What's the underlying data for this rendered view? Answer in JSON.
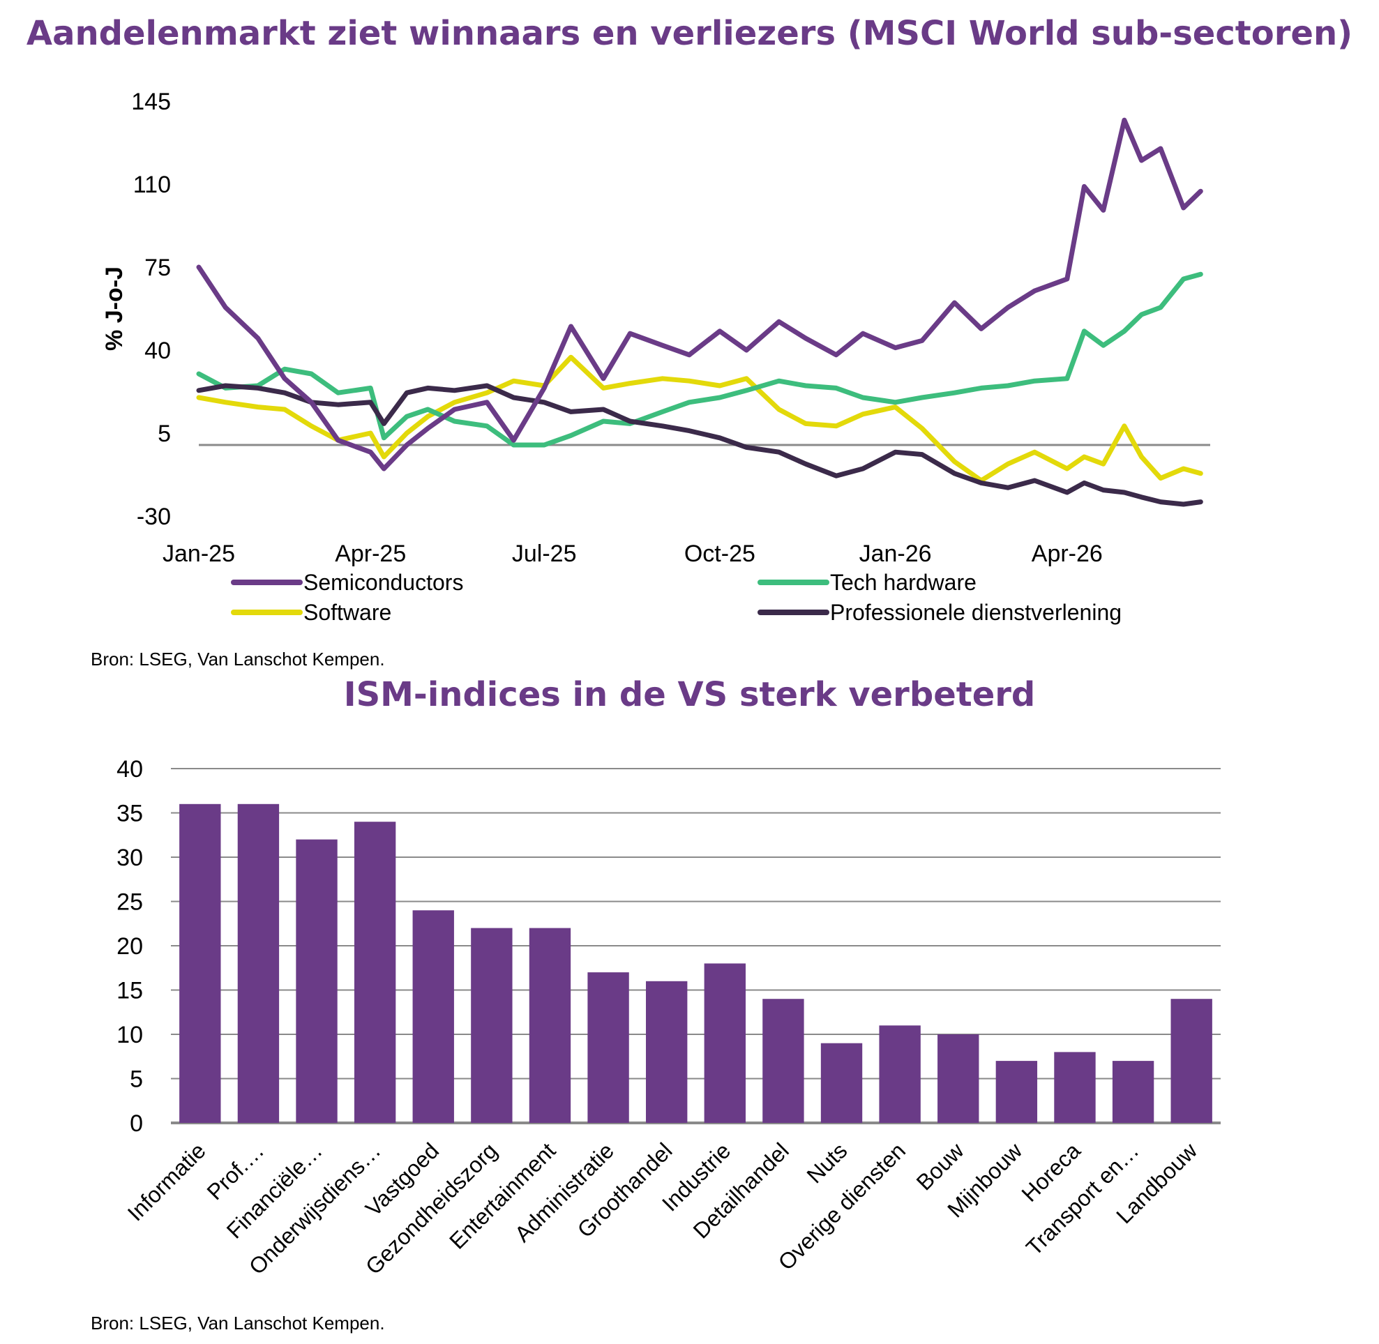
{
  "top_chart": {
    "title": "Aandelenmarkt ziet winnaars en verliezers (MSCI World sub-sectoren)",
    "source": "Bron: LSEG, Van Lanschot Kempen."
  },
  "bottom_chart": {
    "title": "ISM-indices in de VS sterk verbeterd",
    "source": "Bron: LSEG, Van Lanschot Kempen."
  },
  "chart_data": [
    {
      "type": "line",
      "title": "Aandelenmarkt ziet winnaars en verliezers (MSCI World sub-sectoren)",
      "ylabel": "% J-o-J",
      "ylim": [
        -30,
        145
      ],
      "yticks": [
        145,
        110,
        75,
        40,
        5,
        -30
      ],
      "xlim": [
        "2025-01-01",
        "2026-06-15"
      ],
      "xticks": [
        {
          "date": "2025-01-01",
          "label": "Jan-25"
        },
        {
          "date": "2025-04-01",
          "label": "Apr-25"
        },
        {
          "date": "2025-07-01",
          "label": "Jul-25"
        },
        {
          "date": "2025-10-01",
          "label": "Oct-25"
        },
        {
          "date": "2026-01-01",
          "label": "Jan-26"
        },
        {
          "date": "2026-04-01",
          "label": "Apr-26"
        }
      ],
      "reference_line": 0,
      "legend_position": "bottom",
      "colors": {
        "Semiconductors": "#6a3b87",
        "Tech hardware": "#3dbd7d",
        "Software": "#e3d90a",
        "Professionele dienstverlening": "#3b2a4a",
        "reference": "#8a8a8a"
      },
      "series": [
        {
          "name": "Semiconductors",
          "x": [
            "2025-01-01",
            "2025-01-15",
            "2025-02-01",
            "2025-02-15",
            "2025-03-01",
            "2025-03-15",
            "2025-04-01",
            "2025-04-08",
            "2025-04-20",
            "2025-05-01",
            "2025-05-15",
            "2025-06-01",
            "2025-06-15",
            "2025-07-01",
            "2025-07-15",
            "2025-08-01",
            "2025-08-15",
            "2025-09-01",
            "2025-09-15",
            "2025-10-01",
            "2025-10-15",
            "2025-11-01",
            "2025-11-15",
            "2025-12-01",
            "2025-12-15",
            "2026-01-01",
            "2026-01-15",
            "2026-02-01",
            "2026-02-15",
            "2026-03-01",
            "2026-03-15",
            "2026-04-01",
            "2026-04-10",
            "2026-04-20",
            "2026-05-01",
            "2026-05-10",
            "2026-05-20",
            "2026-06-01",
            "2026-06-10"
          ],
          "values": [
            75,
            58,
            45,
            28,
            18,
            2,
            -3,
            -10,
            0,
            7,
            15,
            18,
            2,
            24,
            50,
            28,
            47,
            42,
            38,
            48,
            40,
            52,
            45,
            38,
            47,
            41,
            44,
            60,
            49,
            58,
            65,
            70,
            109,
            99,
            137,
            120,
            125,
            100,
            107
          ]
        },
        {
          "name": "Tech hardware",
          "x": [
            "2025-01-01",
            "2025-01-15",
            "2025-02-01",
            "2025-02-15",
            "2025-03-01",
            "2025-03-15",
            "2025-04-01",
            "2025-04-08",
            "2025-04-20",
            "2025-05-01",
            "2025-05-15",
            "2025-06-01",
            "2025-06-15",
            "2025-07-01",
            "2025-07-15",
            "2025-08-01",
            "2025-08-15",
            "2025-09-01",
            "2025-09-15",
            "2025-10-01",
            "2025-10-15",
            "2025-11-01",
            "2025-11-15",
            "2025-12-01",
            "2025-12-15",
            "2026-01-01",
            "2026-01-15",
            "2026-02-01",
            "2026-02-15",
            "2026-03-01",
            "2026-03-15",
            "2026-04-01",
            "2026-04-10",
            "2026-04-20",
            "2026-05-01",
            "2026-05-10",
            "2026-05-20",
            "2026-06-01",
            "2026-06-10"
          ],
          "values": [
            30,
            24,
            25,
            32,
            30,
            22,
            24,
            3,
            12,
            15,
            10,
            8,
            0,
            0,
            4,
            10,
            9,
            14,
            18,
            20,
            23,
            27,
            25,
            24,
            20,
            18,
            20,
            22,
            24,
            25,
            27,
            28,
            48,
            42,
            48,
            55,
            58,
            70,
            72
          ]
        },
        {
          "name": "Software",
          "x": [
            "2025-01-01",
            "2025-01-15",
            "2025-02-01",
            "2025-02-15",
            "2025-03-01",
            "2025-03-15",
            "2025-04-01",
            "2025-04-08",
            "2025-04-20",
            "2025-05-01",
            "2025-05-15",
            "2025-06-01",
            "2025-06-15",
            "2025-07-01",
            "2025-07-15",
            "2025-08-01",
            "2025-08-15",
            "2025-09-01",
            "2025-09-15",
            "2025-10-01",
            "2025-10-15",
            "2025-11-01",
            "2025-11-15",
            "2025-12-01",
            "2025-12-15",
            "2026-01-01",
            "2026-01-15",
            "2026-02-01",
            "2026-02-15",
            "2026-03-01",
            "2026-03-15",
            "2026-04-01",
            "2026-04-10",
            "2026-04-20",
            "2026-05-01",
            "2026-05-10",
            "2026-05-20",
            "2026-06-01",
            "2026-06-10"
          ],
          "values": [
            20,
            18,
            16,
            15,
            8,
            2,
            5,
            -5,
            5,
            12,
            18,
            22,
            27,
            25,
            37,
            24,
            26,
            28,
            27,
            25,
            28,
            15,
            9,
            8,
            13,
            16,
            7,
            -7,
            -15,
            -8,
            -3,
            -10,
            -5,
            -8,
            8,
            -5,
            -14,
            -10,
            -12
          ]
        },
        {
          "name": "Professionele dienstverlening",
          "x": [
            "2025-01-01",
            "2025-01-15",
            "2025-02-01",
            "2025-02-15",
            "2025-03-01",
            "2025-03-15",
            "2025-04-01",
            "2025-04-08",
            "2025-04-20",
            "2025-05-01",
            "2025-05-15",
            "2025-06-01",
            "2025-06-15",
            "2025-07-01",
            "2025-07-15",
            "2025-08-01",
            "2025-08-15",
            "2025-09-01",
            "2025-09-15",
            "2025-10-01",
            "2025-10-15",
            "2025-11-01",
            "2025-11-15",
            "2025-12-01",
            "2025-12-15",
            "2026-01-01",
            "2026-01-15",
            "2026-02-01",
            "2026-02-15",
            "2026-03-01",
            "2026-03-15",
            "2026-04-01",
            "2026-04-10",
            "2026-04-20",
            "2026-05-01",
            "2026-05-10",
            "2026-05-20",
            "2026-06-01",
            "2026-06-10"
          ],
          "values": [
            23,
            25,
            24,
            22,
            18,
            17,
            18,
            9,
            22,
            24,
            23,
            25,
            20,
            18,
            14,
            15,
            10,
            8,
            6,
            3,
            -1,
            -3,
            -8,
            -13,
            -10,
            -3,
            -4,
            -12,
            -16,
            -18,
            -15,
            -20,
            -16,
            -19,
            -20,
            -22,
            -24,
            -25,
            -24
          ]
        }
      ]
    },
    {
      "type": "bar",
      "title": "ISM-indices in de VS sterk verbeterd",
      "ylim": [
        0,
        40
      ],
      "yticks": [
        0,
        5,
        10,
        15,
        20,
        25,
        30,
        35,
        40
      ],
      "bar_color": "#6a3b87",
      "categories": [
        "Informatie",
        "Prof.…",
        "Financiële…",
        "Onderwijsdiens…",
        "Vastgoed",
        "Gezondheidszorg",
        "Entertainment",
        "Administratie",
        "Groothandel",
        "Industrie",
        "Detailhandel",
        "Nuts",
        "Overige diensten",
        "Bouw",
        "Mijnbouw",
        "Horeca",
        "Transport en…",
        "Landbouw"
      ],
      "values": [
        36,
        36,
        32,
        34,
        24,
        22,
        22,
        17,
        16,
        18,
        14,
        9,
        11,
        10,
        7,
        8,
        7,
        14
      ]
    }
  ]
}
